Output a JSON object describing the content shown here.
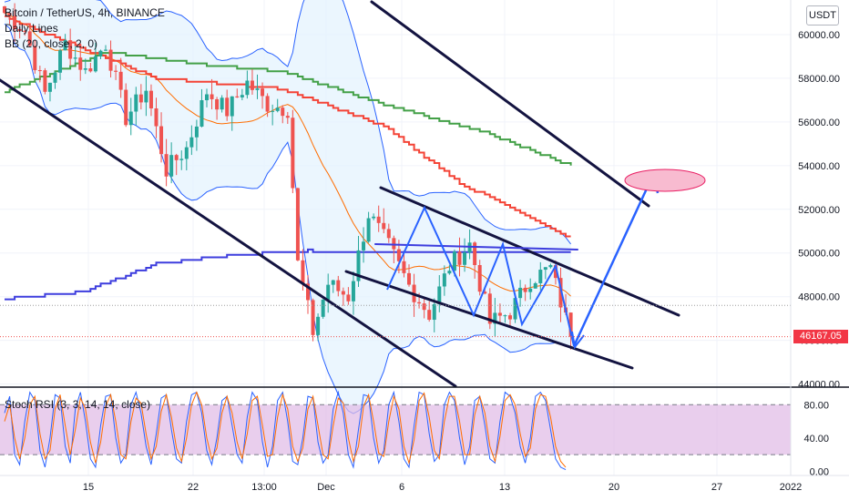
{
  "legend": {
    "title": "Bitcoin / TetherUS, 4h, BINANCE",
    "line2": "Daily Lines",
    "line3": "BB (20, close, 2, 0)"
  },
  "currency_button": "USDT",
  "last_price": "46167.05",
  "rsi_title": "Stoch RSI (3, 3, 14, 14, close)",
  "colors": {
    "up": "#26a69a",
    "down": "#ef5350",
    "bb_band": "#2962ff",
    "bb_fill": "#e3f2fd",
    "bb_basis": "#ff6d00",
    "line_red": "#f44336",
    "line_green": "#43a047",
    "line_blue": "#3d3dde",
    "trend": "#131340",
    "arrow": "#2962ff",
    "rsi_k": "#2962ff",
    "rsi_d": "#ff6d00",
    "rsi_band": "#e1bee7",
    "target_ellipse": "#f8bbd0"
  },
  "chart_data": [
    {
      "type": "candlestick",
      "title": "Bitcoin / TetherUS, 4h, BINANCE",
      "y_axis": {
        "ticks": [
          44000,
          46000,
          48000,
          50000,
          52000,
          54000,
          56000,
          58000,
          60000
        ],
        "tick_labels": [
          "44000.00",
          "46000.00",
          "48000.00",
          "50000.00",
          "52000.00",
          "54000.00",
          "56000.00",
          "58000.00",
          "60000.00"
        ],
        "range": [
          43900,
          61000
        ]
      },
      "x_axis": {
        "tick_labels": [
          "15",
          "22",
          "13:00",
          "Dec",
          "6",
          "13",
          "20",
          "27",
          "2022"
        ]
      },
      "last_price": 46167.05,
      "price_path": [
        [
          0,
          61000
        ],
        [
          4,
          60200
        ],
        [
          8,
          57300
        ],
        [
          12,
          59600
        ],
        [
          16,
          58300
        ],
        [
          20,
          59600
        ],
        [
          24,
          56200
        ],
        [
          28,
          57500
        ],
        [
          32,
          53800
        ],
        [
          36,
          54800
        ],
        [
          40,
          57400
        ],
        [
          44,
          56500
        ],
        [
          48,
          57800
        ],
        [
          52,
          56800
        ],
        [
          56,
          56600
        ],
        [
          58,
          49500
        ],
        [
          61,
          46400
        ],
        [
          64,
          48600
        ],
        [
          68,
          48000
        ],
        [
          72,
          51800
        ],
        [
          76,
          50300
        ],
        [
          80,
          48500
        ],
        [
          84,
          47200
        ],
        [
          88,
          49400
        ],
        [
          92,
          50400
        ],
        [
          96,
          46800
        ],
        [
          100,
          47300
        ],
        [
          104,
          48800
        ],
        [
          108,
          49300
        ],
        [
          112,
          46200
        ]
      ],
      "overlays": [
        {
          "name": "Daily Lines",
          "color": "#f44336",
          "values": [
            [
              0,
              60800
            ],
            [
              30,
              58000
            ],
            [
              55,
              57500
            ],
            [
              75,
              55800
            ],
            [
              90,
              53200
            ],
            [
              112,
              50700
            ]
          ]
        },
        {
          "name": "Daily Lines",
          "color": "#43a047",
          "values": [
            [
              0,
              57400
            ],
            [
              20,
              59200
            ],
            [
              40,
              58600
            ],
            [
              55,
              58300
            ],
            [
              75,
              56800
            ],
            [
              95,
              55500
            ],
            [
              112,
              54000
            ]
          ]
        },
        {
          "name": "Daily Lines",
          "color": "#3d3dde",
          "values": [
            [
              0,
              47900
            ],
            [
              15,
              48200
            ],
            [
              30,
              49500
            ],
            [
              45,
              49900
            ],
            [
              60,
              50100
            ],
            [
              112,
              50000
            ]
          ]
        }
      ],
      "target_zone": {
        "price": 53000,
        "index": 121
      }
    },
    {
      "type": "line",
      "title": "Stoch RSI (3, 3, 14, 14, close)",
      "y_axis": {
        "ticks": [
          0,
          40,
          80
        ],
        "tick_labels": [
          "0.00",
          "40.00",
          "80.00"
        ],
        "range": [
          -5,
          100
        ]
      },
      "bands": [
        20,
        80
      ],
      "series": [
        {
          "name": "K",
          "color": "#2962ff",
          "values": [
            70,
            90,
            20,
            8,
            60,
            95,
            85,
            25,
            5,
            40,
            92,
            88,
            30,
            10,
            75,
            95,
            60,
            15,
            5,
            55,
            90,
            92,
            40,
            10,
            20,
            80,
            95,
            70,
            30,
            8,
            45,
            88,
            92,
            50,
            15,
            10,
            60,
            92,
            95,
            70,
            25,
            8,
            40,
            85,
            90,
            55,
            20,
            10,
            65,
            95,
            85,
            35,
            5,
            30,
            85,
            95,
            60,
            12,
            8,
            40,
            90,
            88,
            35,
            10,
            20,
            75,
            95,
            70,
            20,
            5,
            50,
            92,
            90,
            40,
            10,
            25,
            80,
            95,
            60,
            15,
            5,
            55,
            95,
            92,
            45,
            12,
            20,
            80,
            95,
            85,
            40,
            8,
            30,
            85,
            90,
            55,
            15,
            10,
            60,
            95,
            90,
            70,
            30,
            10,
            40,
            90,
            95,
            85,
            50,
            15,
            5,
            2
          ]
        },
        {
          "name": "D",
          "color": "#ff6d00",
          "values": [
            60,
            80,
            40,
            15,
            40,
            80,
            90,
            45,
            15,
            25,
            75,
            92,
            55,
            20,
            50,
            88,
            75,
            35,
            10,
            35,
            78,
            92,
            60,
            20,
            15,
            60,
            88,
            82,
            45,
            15,
            30,
            72,
            92,
            65,
            28,
            12,
            40,
            80,
            95,
            80,
            40,
            15,
            28,
            70,
            90,
            70,
            35,
            15,
            45,
            85,
            90,
            55,
            18,
            20,
            65,
            92,
            75,
            30,
            12,
            28,
            75,
            90,
            55,
            20,
            15,
            55,
            88,
            82,
            40,
            12,
            30,
            78,
            92,
            60,
            22,
            18,
            60,
            90,
            75,
            30,
            10,
            38,
            85,
            94,
            65,
            25,
            15,
            60,
            90,
            90,
            60,
            20,
            20,
            68,
            90,
            70,
            30,
            12,
            42,
            85,
            92,
            80,
            45,
            18,
            28,
            75,
            92,
            90,
            65,
            30,
            12,
            5
          ]
        }
      ]
    }
  ]
}
